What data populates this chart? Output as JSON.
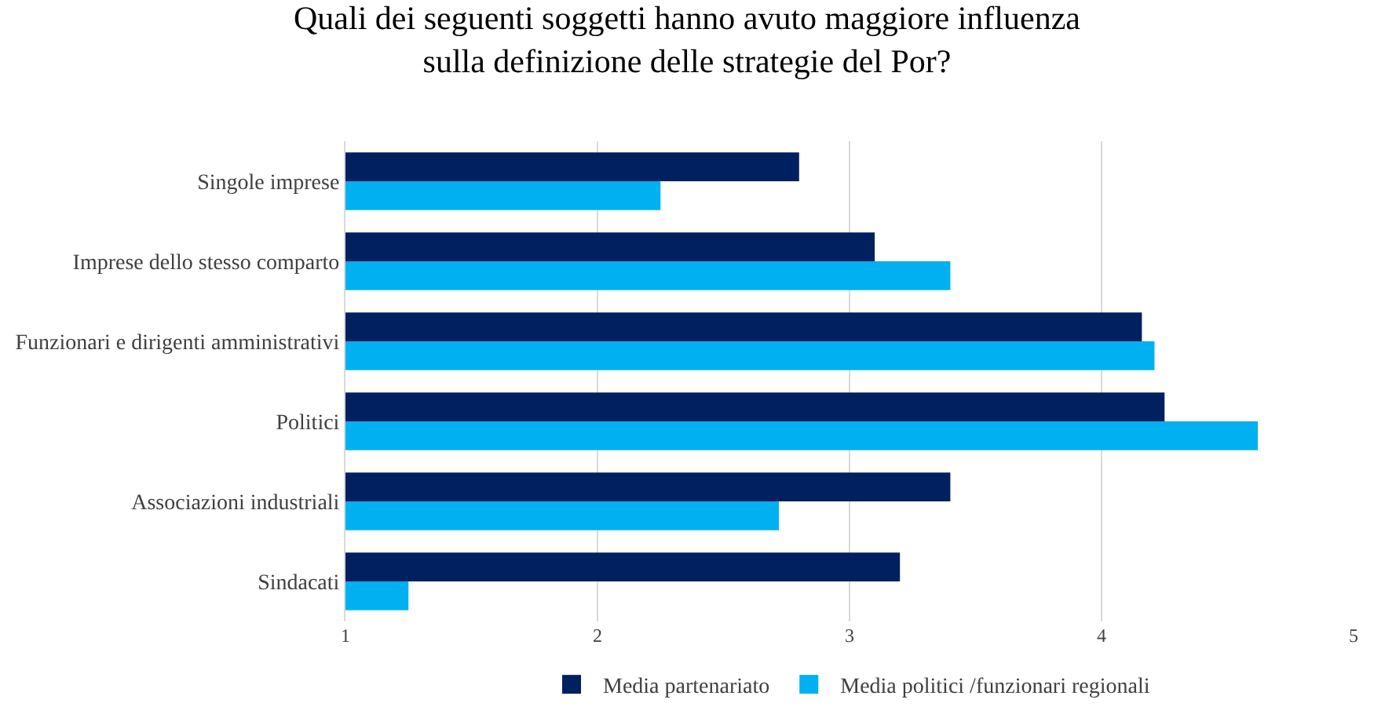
{
  "chart_data": {
    "type": "bar",
    "orientation": "horizontal",
    "title": "Quali dei seguenti soggetti hanno avuto maggiore influenza sulla definizione delle strategie del Por?",
    "categories": [
      "Singole imprese",
      "Imprese dello stesso comparto",
      "Funzionari e dirigenti amministrativi",
      "Politici",
      "Associazioni industriali",
      "Sindacati"
    ],
    "series": [
      {
        "name": "Media partenariato",
        "color": "#002060",
        "values": [
          2.8,
          3.1,
          4.16,
          4.25,
          3.4,
          3.2
        ]
      },
      {
        "name": "Media politici /funzionari regionali",
        "color": "#00b0f0",
        "values": [
          2.25,
          3.4,
          4.21,
          4.62,
          2.72,
          1.25
        ]
      }
    ],
    "xlim": [
      1,
      5
    ],
    "xticks": [
      1,
      2,
      3,
      4,
      5
    ],
    "grid": "x",
    "legend": "bottom"
  }
}
